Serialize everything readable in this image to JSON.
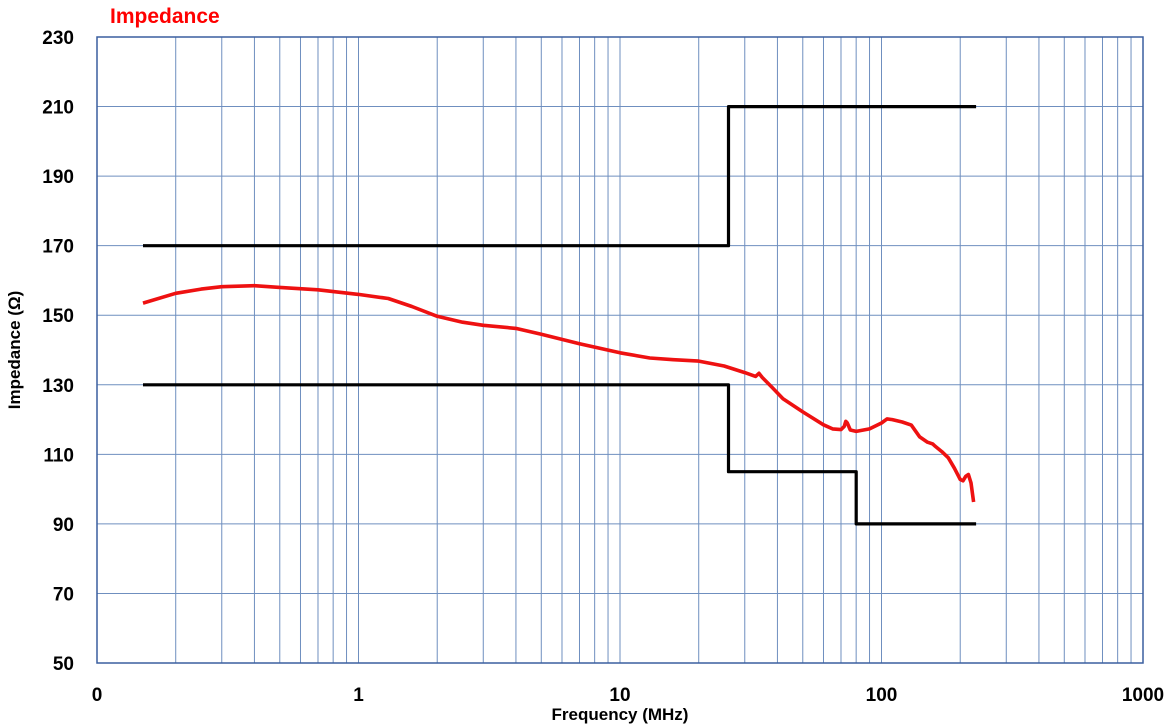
{
  "chart_data": {
    "type": "line",
    "title": "Impedance",
    "xlabel": "Frequency (MHz)",
    "ylabel": "Impedance (Ω)",
    "x_scale": "log",
    "xlim": [
      0.1,
      1000
    ],
    "ylim": [
      50,
      230
    ],
    "x_tick_labels": [
      "0",
      "1",
      "10",
      "100",
      "1000"
    ],
    "y_ticks": [
      50,
      70,
      90,
      110,
      130,
      150,
      170,
      190,
      210,
      230
    ],
    "grid": true,
    "colors": {
      "title": "#ff0000",
      "measured": "#ee1111",
      "limits": "#000000",
      "grid": "#6f8fbf",
      "frame": "#3a5f9f"
    },
    "series": [
      {
        "role": "measured",
        "x": [
          0.15,
          0.2,
          0.25,
          0.3,
          0.4,
          0.5,
          0.7,
          1.0,
          1.3,
          1.6,
          2.0,
          2.5,
          3.0,
          4.0,
          5.0,
          7.0,
          10,
          13,
          16,
          20,
          25,
          30,
          33,
          34,
          35,
          38,
          42,
          50,
          60,
          65,
          70,
          72,
          73,
          74,
          76,
          80,
          90,
          100,
          105,
          110,
          120,
          130,
          140,
          150,
          157,
          160,
          170,
          180,
          190,
          200,
          205,
          210,
          215,
          220,
          225
        ],
        "y": [
          153.5,
          156.3,
          157.5,
          158.2,
          158.5,
          158.0,
          157.3,
          156.0,
          154.8,
          152.5,
          149.7,
          148.0,
          147.1,
          146.2,
          144.5,
          141.8,
          139.2,
          137.7,
          137.2,
          136.8,
          135.4,
          133.5,
          132.4,
          133.3,
          132.1,
          129.4,
          126.0,
          122.2,
          118.5,
          117.3,
          117.1,
          118.0,
          119.5,
          119.0,
          117.0,
          116.6,
          117.3,
          119.0,
          120.2,
          120.0,
          119.3,
          118.4,
          115.0,
          113.5,
          113.0,
          112.4,
          110.8,
          109.0,
          106.0,
          102.8,
          102.4,
          103.7,
          104.2,
          101.8,
          96.3
        ]
      },
      {
        "role": "upper-limit",
        "x": [
          0.15,
          26,
          26,
          230
        ],
        "y": [
          170,
          170,
          210,
          210
        ]
      },
      {
        "role": "lower-limit",
        "x": [
          0.15,
          26,
          26,
          80,
          80,
          230
        ],
        "y": [
          130,
          130,
          105,
          105,
          90,
          90
        ]
      }
    ]
  }
}
